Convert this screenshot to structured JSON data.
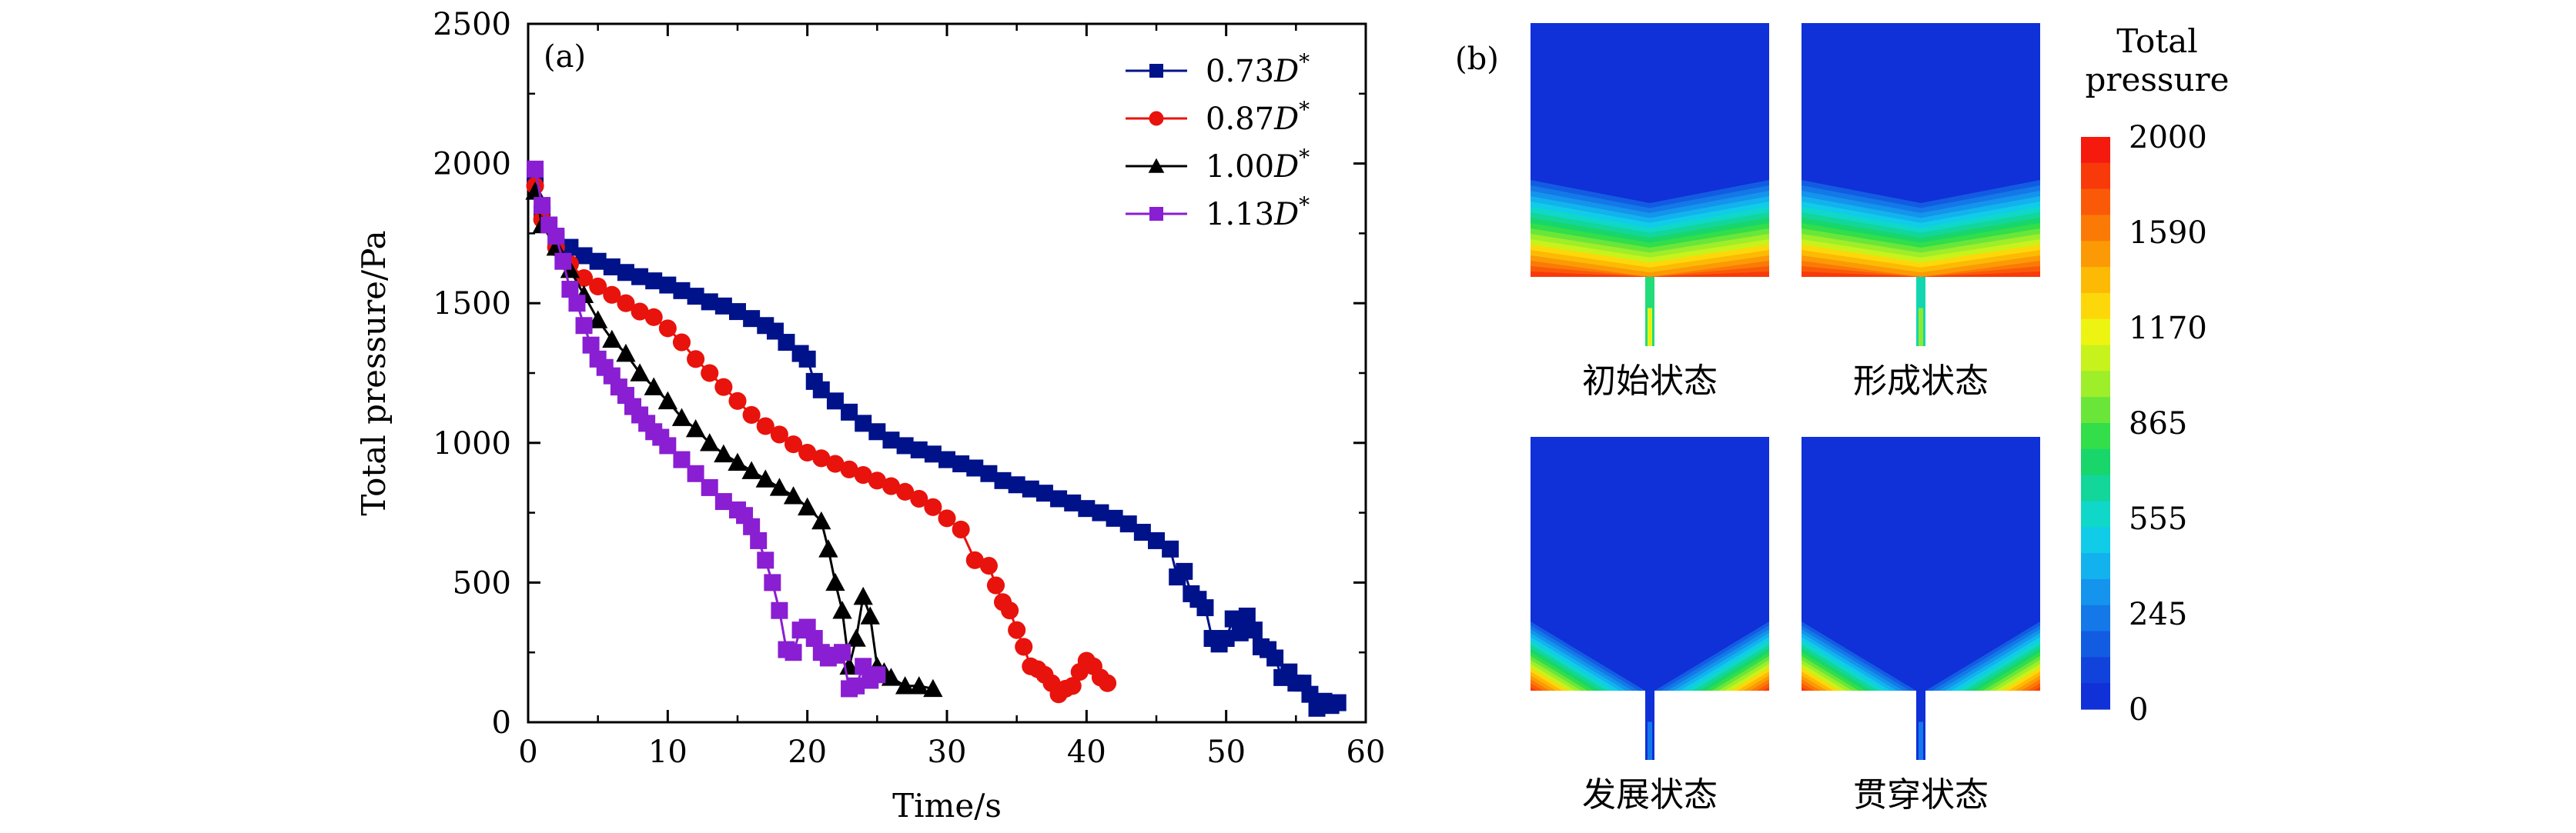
{
  "chart_data": [
    {
      "panel": "(a)",
      "type": "line",
      "xlabel": "Time/s",
      "ylabel": "Total pressure/Pa",
      "xlim": [
        0,
        60
      ],
      "ylim": [
        0,
        2500
      ],
      "xticks": [
        "0",
        "10",
        "20",
        "30",
        "40",
        "50",
        "60"
      ],
      "yticks": [
        "0",
        "500",
        "1000",
        "1500",
        "2000",
        "2500"
      ],
      "legend_position": "top-right",
      "series": [
        {
          "name": "0.73D*",
          "name_base": "0.73",
          "name_var": "D",
          "name_sup": "*",
          "color": "#00128a",
          "marker": "square",
          "x": [
            0.5,
            1,
            2,
            3,
            4,
            5,
            6,
            7,
            8,
            9,
            10,
            11,
            12,
            13,
            14,
            15,
            16,
            17,
            17.7,
            18.5,
            19.5,
            20,
            20.5,
            21,
            22,
            23,
            24,
            25,
            26,
            27,
            28,
            29,
            30,
            31,
            32,
            33,
            34,
            35,
            36,
            37,
            38,
            39,
            40,
            41,
            42,
            43,
            44,
            45,
            46,
            46.5,
            47,
            47.5,
            48,
            48.5,
            49,
            49.5,
            50,
            50.5,
            51,
            51.5,
            52,
            52.5,
            53,
            53.5,
            54,
            54.5,
            55,
            55.5,
            56,
            56.5,
            57,
            57.5,
            58
          ],
          "y": [
            1950,
            1820,
            1730,
            1700,
            1670,
            1650,
            1630,
            1610,
            1595,
            1580,
            1565,
            1545,
            1525,
            1505,
            1490,
            1470,
            1445,
            1420,
            1400,
            1360,
            1320,
            1300,
            1220,
            1190,
            1150,
            1110,
            1070,
            1040,
            1010,
            990,
            975,
            960,
            940,
            925,
            910,
            890,
            865,
            850,
            835,
            820,
            800,
            785,
            765,
            750,
            730,
            710,
            680,
            650,
            620,
            520,
            540,
            460,
            440,
            410,
            300,
            280,
            300,
            370,
            320,
            380,
            330,
            270,
            260,
            230,
            160,
            180,
            140,
            140,
            100,
            50,
            75,
            60,
            70
          ]
        },
        {
          "name": "0.87D*",
          "name_base": "0.87",
          "name_var": "D",
          "name_sup": "*",
          "color": "#e8130c",
          "marker": "circle",
          "x": [
            0.5,
            1,
            2,
            3,
            4,
            5,
            6,
            7,
            8,
            9,
            10,
            11,
            12,
            13,
            14,
            15,
            16,
            17,
            18,
            19,
            20,
            21,
            22,
            23,
            24,
            25,
            26,
            27,
            28,
            29,
            30,
            31,
            32,
            33,
            33.5,
            34,
            34.5,
            35,
            35.5,
            36,
            36.5,
            37,
            37.5,
            38,
            38.5,
            39,
            39.5,
            40,
            40.5,
            41,
            41.5
          ],
          "y": [
            1920,
            1800,
            1700,
            1640,
            1590,
            1560,
            1530,
            1500,
            1470,
            1450,
            1410,
            1360,
            1300,
            1250,
            1200,
            1150,
            1100,
            1060,
            1030,
            995,
            965,
            945,
            925,
            905,
            885,
            865,
            845,
            825,
            800,
            770,
            730,
            690,
            580,
            560,
            490,
            430,
            400,
            330,
            270,
            200,
            190,
            170,
            140,
            100,
            120,
            130,
            180,
            220,
            200,
            160,
            140
          ]
        },
        {
          "name": "1.00D*",
          "name_base": "1.00",
          "name_var": "D",
          "name_sup": "*",
          "color": "#000000",
          "marker": "triangle",
          "x": [
            0.5,
            1,
            2,
            3,
            4,
            5,
            6,
            7,
            8,
            9,
            10,
            11,
            12,
            13,
            14,
            15,
            16,
            17,
            18,
            19,
            20,
            21,
            21.5,
            22,
            22.5,
            23,
            23.5,
            24,
            24.5,
            25,
            25.5,
            26,
            27,
            28,
            29
          ],
          "y": [
            1900,
            1780,
            1700,
            1620,
            1530,
            1440,
            1370,
            1320,
            1250,
            1200,
            1150,
            1090,
            1050,
            1000,
            960,
            930,
            900,
            870,
            840,
            810,
            770,
            720,
            620,
            500,
            400,
            200,
            300,
            450,
            380,
            200,
            180,
            160,
            130,
            130,
            120
          ]
        },
        {
          "name": "1.13D*",
          "name_base": "1.13",
          "name_var": "D",
          "name_sup": "*",
          "color": "#8a1ed2",
          "marker": "square",
          "x": [
            0.5,
            1,
            1.5,
            2,
            2.5,
            3,
            3.5,
            4,
            4.5,
            5,
            5.5,
            6,
            6.5,
            7,
            7.5,
            8,
            8.5,
            9,
            9.5,
            10,
            11,
            12,
            13,
            14,
            15,
            15.5,
            16,
            16.5,
            17,
            17.5,
            18,
            18.5,
            19,
            19.5,
            20,
            20.5,
            21,
            21.5,
            22,
            22.5,
            23,
            23.5,
            24,
            24.5,
            25
          ],
          "y": [
            1980,
            1850,
            1780,
            1740,
            1650,
            1550,
            1500,
            1420,
            1350,
            1300,
            1270,
            1240,
            1200,
            1170,
            1130,
            1100,
            1070,
            1040,
            1020,
            990,
            940,
            890,
            840,
            790,
            760,
            740,
            700,
            650,
            580,
            500,
            400,
            260,
            250,
            330,
            340,
            300,
            250,
            230,
            240,
            250,
            120,
            130,
            200,
            150,
            170
          ]
        }
      ]
    },
    {
      "panel": "(b)",
      "type": "heatmap",
      "colorbar_title": [
        "Total",
        "pressure"
      ],
      "colorbar_ticks": [
        "2000",
        "1590",
        "1170",
        "865",
        "555",
        "245",
        "0"
      ],
      "colorbar_colors": [
        "#f61a0e",
        "#f83a0a",
        "#fa5a08",
        "#fb7a06",
        "#fc9a05",
        "#fcba04",
        "#fcd80a",
        "#eef412",
        "#c8f21c",
        "#9eee2a",
        "#6ae63a",
        "#32de4a",
        "#18d66a",
        "#12d69a",
        "#10d8c8",
        "#10cce8",
        "#12b2ee",
        "#1494ec",
        "#1478e8",
        "#125ce2",
        "#1242dc",
        "#1030d8"
      ],
      "colorbar_range": [
        0,
        2000
      ],
      "panels": [
        {
          "label": "初始状态",
          "row": 1,
          "col": 1,
          "stage": 0
        },
        {
          "label": "形成状态",
          "row": 1,
          "col": 2,
          "stage": 1
        },
        {
          "label": "发展状态",
          "row": 2,
          "col": 1,
          "stage": 2
        },
        {
          "label": "贯穿状态",
          "row": 2,
          "col": 2,
          "stage": 3
        }
      ]
    }
  ]
}
